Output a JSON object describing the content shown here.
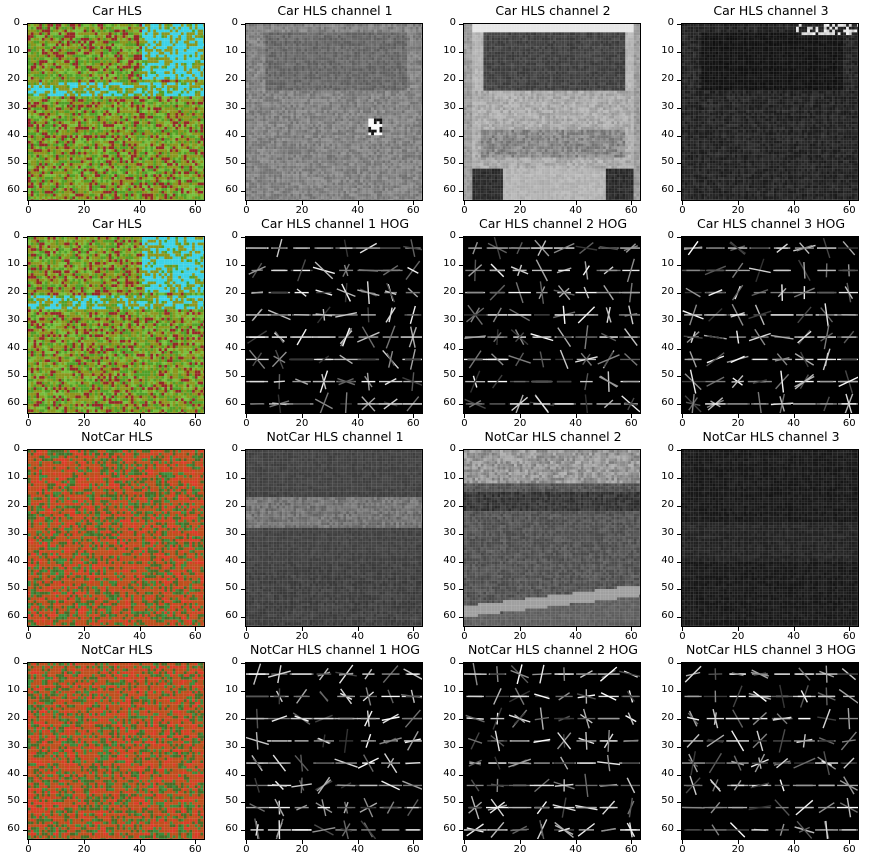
{
  "figure": {
    "rows": [
      [
        "Car HLS",
        "Car HLS channel 1",
        "Car HLS channel 2",
        "Car HLS channel 3"
      ],
      [
        "Car HLS",
        "Car HLS channel 1 HOG",
        "Car HLS channel 2 HOG",
        "Car HLS channel 3 HOG"
      ],
      [
        "NotCar HLS",
        "NotCar HLS channel 1",
        "NotCar HLS channel 2",
        "NotCar HLS channel 3"
      ],
      [
        "NotCar HLS",
        "NotCar HLS channel 1 HOG",
        "NotCar HLS channel 2 HOG",
        "NotCar HLS channel 3 HOG"
      ]
    ]
  },
  "chart_data": [
    {
      "type": "image",
      "title": "Car HLS",
      "kind": "color",
      "subject": "car",
      "xlim": [
        0,
        63
      ],
      "ylim": [
        63,
        0
      ],
      "xticks": [
        0,
        20,
        40,
        60
      ],
      "yticks": [
        0,
        10,
        20,
        30,
        40,
        50,
        60
      ]
    },
    {
      "type": "image",
      "title": "Car HLS channel 1",
      "kind": "gray",
      "subject": "car",
      "xlim": [
        0,
        63
      ],
      "ylim": [
        63,
        0
      ],
      "xticks": [
        0,
        20,
        40,
        60
      ],
      "yticks": [
        0,
        10,
        20,
        30,
        40,
        50,
        60
      ]
    },
    {
      "type": "image",
      "title": "Car HLS channel 2",
      "kind": "gray",
      "subject": "car",
      "xlim": [
        0,
        63
      ],
      "ylim": [
        63,
        0
      ],
      "xticks": [
        0,
        20,
        40,
        60
      ],
      "yticks": [
        0,
        10,
        20,
        30,
        40,
        50,
        60
      ]
    },
    {
      "type": "image",
      "title": "Car HLS channel 3",
      "kind": "gray",
      "subject": "car",
      "xlim": [
        0,
        63
      ],
      "ylim": [
        63,
        0
      ],
      "xticks": [
        0,
        20,
        40,
        60
      ],
      "yticks": [
        0,
        10,
        20,
        30,
        40,
        50,
        60
      ]
    },
    {
      "type": "image",
      "title": "Car HLS",
      "kind": "color",
      "subject": "car",
      "xlim": [
        0,
        63
      ],
      "ylim": [
        63,
        0
      ],
      "xticks": [
        0,
        20,
        40,
        60
      ],
      "yticks": [
        0,
        10,
        20,
        30,
        40,
        50,
        60
      ]
    },
    {
      "type": "image",
      "title": "Car HLS channel 1 HOG",
      "kind": "hog",
      "subject": "car",
      "xlim": [
        0,
        63
      ],
      "ylim": [
        63,
        0
      ],
      "xticks": [
        0,
        20,
        40,
        60
      ],
      "yticks": [
        0,
        10,
        20,
        30,
        40,
        50,
        60
      ]
    },
    {
      "type": "image",
      "title": "Car HLS channel 2 HOG",
      "kind": "hog",
      "subject": "car",
      "xlim": [
        0,
        63
      ],
      "ylim": [
        63,
        0
      ],
      "xticks": [
        0,
        20,
        40,
        60
      ],
      "yticks": [
        0,
        10,
        20,
        30,
        40,
        50,
        60
      ]
    },
    {
      "type": "image",
      "title": "Car HLS channel 3 HOG",
      "kind": "hog",
      "subject": "car",
      "xlim": [
        0,
        63
      ],
      "ylim": [
        63,
        0
      ],
      "xticks": [
        0,
        20,
        40,
        60
      ],
      "yticks": [
        0,
        10,
        20,
        30,
        40,
        50,
        60
      ]
    },
    {
      "type": "image",
      "title": "NotCar HLS",
      "kind": "color",
      "subject": "notcar",
      "xlim": [
        0,
        63
      ],
      "ylim": [
        63,
        0
      ],
      "xticks": [
        0,
        20,
        40,
        60
      ],
      "yticks": [
        0,
        10,
        20,
        30,
        40,
        50,
        60
      ]
    },
    {
      "type": "image",
      "title": "NotCar HLS channel 1",
      "kind": "gray",
      "subject": "notcar",
      "xlim": [
        0,
        63
      ],
      "ylim": [
        63,
        0
      ],
      "xticks": [
        0,
        20,
        40,
        60
      ],
      "yticks": [
        0,
        10,
        20,
        30,
        40,
        50,
        60
      ]
    },
    {
      "type": "image",
      "title": "NotCar HLS channel 2",
      "kind": "gray",
      "subject": "notcar",
      "xlim": [
        0,
        63
      ],
      "ylim": [
        63,
        0
      ],
      "xticks": [
        0,
        20,
        40,
        60
      ],
      "yticks": [
        0,
        10,
        20,
        30,
        40,
        50,
        60
      ]
    },
    {
      "type": "image",
      "title": "NotCar HLS channel 3",
      "kind": "gray",
      "subject": "notcar",
      "xlim": [
        0,
        63
      ],
      "ylim": [
        63,
        0
      ],
      "xticks": [
        0,
        20,
        40,
        60
      ],
      "yticks": [
        0,
        10,
        20,
        30,
        40,
        50,
        60
      ]
    },
    {
      "type": "image",
      "title": "NotCar HLS",
      "kind": "color",
      "subject": "notcar",
      "xlim": [
        0,
        63
      ],
      "ylim": [
        63,
        0
      ],
      "xticks": [
        0,
        20,
        40,
        60
      ],
      "yticks": [
        0,
        10,
        20,
        30,
        40,
        50,
        60
      ]
    },
    {
      "type": "image",
      "title": "NotCar HLS channel 1 HOG",
      "kind": "hog",
      "subject": "notcar",
      "xlim": [
        0,
        63
      ],
      "ylim": [
        63,
        0
      ],
      "xticks": [
        0,
        20,
        40,
        60
      ],
      "yticks": [
        0,
        10,
        20,
        30,
        40,
        50,
        60
      ]
    },
    {
      "type": "image",
      "title": "NotCar HLS channel 2 HOG",
      "kind": "hog",
      "subject": "notcar",
      "xlim": [
        0,
        63
      ],
      "ylim": [
        63,
        0
      ],
      "xticks": [
        0,
        20,
        40,
        60
      ],
      "yticks": [
        0,
        10,
        20,
        30,
        40,
        50,
        60
      ]
    },
    {
      "type": "image",
      "title": "NotCar HLS channel 3 HOG",
      "kind": "hog",
      "subject": "notcar",
      "xlim": [
        0,
        63
      ],
      "ylim": [
        63,
        0
      ],
      "xticks": [
        0,
        20,
        40,
        60
      ],
      "yticks": [
        0,
        10,
        20,
        30,
        40,
        50,
        60
      ]
    }
  ]
}
